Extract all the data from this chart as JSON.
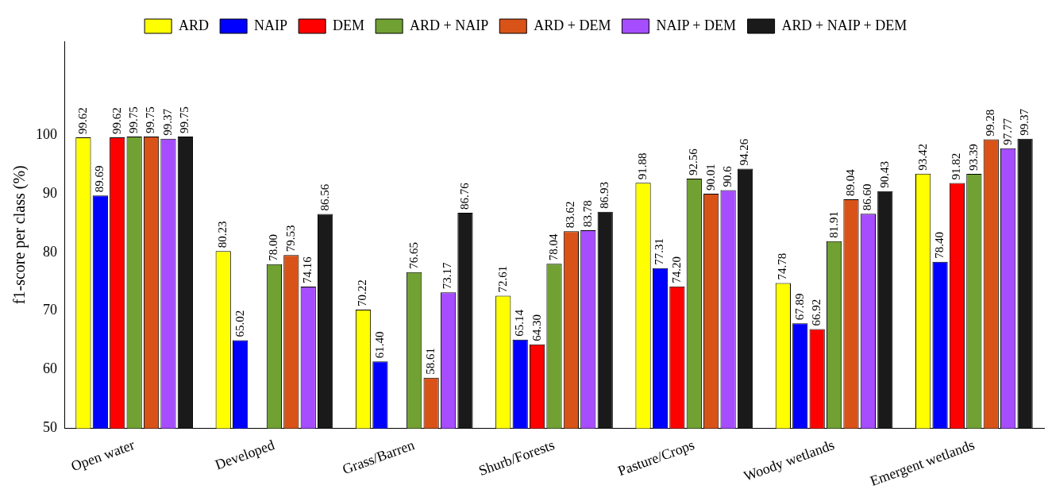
{
  "chart_data": {
    "type": "bar",
    "ylabel": "f1-score per class (%)",
    "categories": [
      "Open water",
      "Developed",
      "Grass/Barren",
      "Shurb/Forests",
      "Pasture/Crops",
      "Woody wetlands",
      "Emergent wetlands"
    ],
    "series": [
      {
        "name": "ARD",
        "color": "#ffff00",
        "values": [
          99.62,
          80.23,
          70.22,
          72.61,
          91.88,
          74.78,
          93.42
        ],
        "value_labels": [
          "99.62",
          "80.23",
          "70.22",
          "72.61",
          "91.88",
          "74.78",
          "93.42"
        ]
      },
      {
        "name": "NAIP",
        "color": "#0000ff",
        "values": [
          89.69,
          65.02,
          61.4,
          65.14,
          77.31,
          67.89,
          78.4
        ],
        "value_labels": [
          "89.69",
          "65.02",
          "61.40",
          "65.14",
          "77.31",
          "67.89",
          "78.40"
        ]
      },
      {
        "name": "DEM",
        "color": "#ff0000",
        "values": [
          99.62,
          null,
          null,
          64.3,
          74.2,
          66.92,
          91.82
        ],
        "value_labels": [
          "99.62",
          null,
          null,
          "64.30",
          "74.20",
          "66.92",
          "91.82"
        ]
      },
      {
        "name": "ARD + NAIP",
        "color": "#70a132",
        "values": [
          99.75,
          78.0,
          76.65,
          78.04,
          92.56,
          81.91,
          93.39
        ],
        "value_labels": [
          "99.75",
          "78.00",
          "76.65",
          "78.04",
          "92.56",
          "81.91",
          "93.39"
        ]
      },
      {
        "name": "ARD + DEM",
        "color": "#d95319",
        "values": [
          99.75,
          79.53,
          58.61,
          83.62,
          90.01,
          89.04,
          99.28
        ],
        "value_labels": [
          "99.75",
          "79.53",
          "58.61",
          "83.62",
          "90.01",
          "89.04",
          "99.28"
        ]
      },
      {
        "name": "NAIP + DEM",
        "color": "#a64dff",
        "values": [
          99.37,
          74.16,
          73.17,
          83.78,
          90.6,
          86.6,
          97.77
        ],
        "value_labels": [
          "99.37",
          "74.16",
          "73.17",
          "83.78",
          "90.6",
          "86.60",
          "97.77"
        ]
      },
      {
        "name": "ARD + NAIP + DEM",
        "color": "#1a1a1a",
        "values": [
          99.75,
          86.56,
          86.76,
          86.93,
          94.26,
          90.43,
          99.37
        ],
        "value_labels": [
          "99.75",
          "86.56",
          "86.76",
          "86.93",
          "94.26",
          "90.43",
          "99.37"
        ]
      }
    ],
    "ylim": [
      50,
      116
    ],
    "yticks": [
      50,
      60,
      70,
      80,
      90,
      100
    ],
    "grid": false,
    "legend": "top"
  }
}
